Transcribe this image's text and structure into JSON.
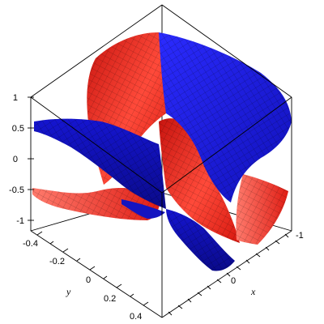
{
  "chart_data": {
    "type": "surface3d",
    "title": "",
    "xlabel": "x",
    "ylabel": "y",
    "zlabel": "",
    "xlim": [
      -1,
      1
    ],
    "ylim": [
      -0.5,
      0.5
    ],
    "zlim": [
      -1,
      1
    ],
    "x_ticks": [
      "-1",
      "0"
    ],
    "y_ticks": [
      "-0.4",
      "-0.2",
      "0",
      "0.2",
      "0.4"
    ],
    "z_ticks": [
      "1",
      "0.5",
      "0",
      "-0.5",
      "-1"
    ],
    "series": [
      {
        "color": "#e8201a",
        "description_shape": "curved sheet"
      },
      {
        "color": "#1a1ae6",
        "description_shape": "curved sheet"
      }
    ],
    "grid": false,
    "box": true
  },
  "colors": {
    "red_surface": "#e8201a",
    "red_light": "#ff6b5c",
    "blue_surface": "#1a1ae6",
    "blue_dark": "#0b0b9e",
    "frame": "#000000"
  }
}
